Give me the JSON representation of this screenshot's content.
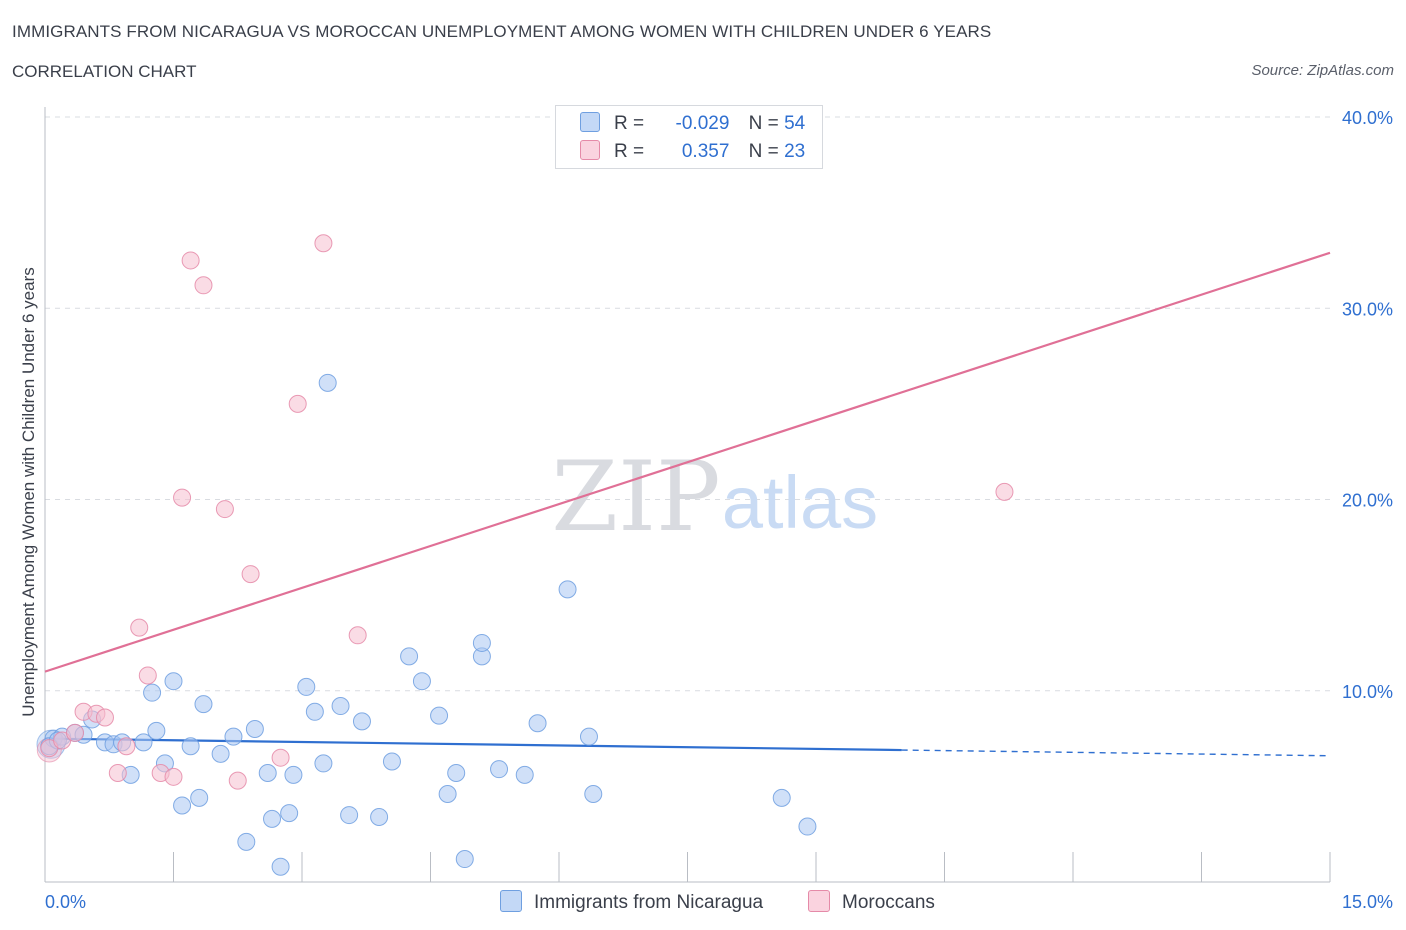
{
  "header": {
    "title": "IMMIGRANTS FROM NICARAGUA VS MOROCCAN UNEMPLOYMENT AMONG WOMEN WITH CHILDREN UNDER 6 YEARS",
    "subtitle": "CORRELATION CHART",
    "source": "Source: ZipAtlas.com"
  },
  "watermark": {
    "zip": "ZIP",
    "atlas": "atlas"
  },
  "legend": {
    "r_label": "R =",
    "n_label": "N =",
    "rows": [
      {
        "r": "-0.029",
        "n": "54",
        "color": "#a9c7f2"
      },
      {
        "r": "0.357",
        "n": "23",
        "color": "#f6bfd0"
      }
    ]
  },
  "colors": {
    "blue_fill": "#a9c7f2",
    "blue_stroke": "#6f9fe0",
    "blue_line": "#2f6fd0",
    "pink_fill": "#f6bfd0",
    "pink_stroke": "#e58aa8",
    "pink_line": "#e07096",
    "grid": "#d9dce1",
    "tick_text": "#2f6fd0"
  },
  "chart_data": {
    "type": "scatter",
    "title": "IMMIGRANTS FROM NICARAGUA VS MOROCCAN UNEMPLOYMENT AMONG WOMEN WITH CHILDREN UNDER 6 YEARS",
    "subtitle": "CORRELATION CHART",
    "xlabel": "",
    "ylabel": "Unemployment Among Women with Children Under 6 years",
    "xlim": [
      0,
      15
    ],
    "ylim": [
      0,
      40
    ],
    "x_tick_labels": [
      "0.0%",
      "15.0%"
    ],
    "y_ticks": [
      10,
      20,
      30,
      40
    ],
    "y_tick_labels": [
      "10.0%",
      "20.0%",
      "30.0%",
      "40.0%"
    ],
    "grid": true,
    "series": [
      {
        "name": "Immigrants from Nicaragua",
        "r": -0.029,
        "n": 54,
        "trend": {
          "x0": 0,
          "y0": 7.5,
          "x1": 10.0,
          "y1": 6.9,
          "dashed_to_x": 15,
          "dashed_to_y": 6.6
        },
        "points": [
          [
            0.1,
            7.5
          ],
          [
            0.2,
            7.6
          ],
          [
            0.35,
            7.8
          ],
          [
            0.45,
            7.7
          ],
          [
            0.55,
            8.5
          ],
          [
            0.7,
            7.3
          ],
          [
            0.8,
            7.2
          ],
          [
            0.9,
            7.3
          ],
          [
            1.0,
            5.6
          ],
          [
            1.15,
            7.3
          ],
          [
            1.25,
            9.9
          ],
          [
            1.3,
            7.9
          ],
          [
            1.4,
            6.2
          ],
          [
            1.5,
            10.5
          ],
          [
            1.6,
            4.0
          ],
          [
            1.7,
            7.1
          ],
          [
            1.8,
            4.4
          ],
          [
            1.85,
            9.3
          ],
          [
            2.05,
            6.7
          ],
          [
            2.2,
            7.6
          ],
          [
            2.35,
            2.1
          ],
          [
            2.45,
            8.0
          ],
          [
            2.6,
            5.7
          ],
          [
            2.65,
            3.3
          ],
          [
            2.75,
            0.8
          ],
          [
            2.85,
            3.6
          ],
          [
            2.9,
            5.6
          ],
          [
            3.05,
            10.2
          ],
          [
            3.15,
            8.9
          ],
          [
            3.25,
            6.2
          ],
          [
            3.3,
            26.1
          ],
          [
            3.45,
            9.2
          ],
          [
            3.55,
            3.5
          ],
          [
            3.7,
            8.4
          ],
          [
            3.9,
            3.4
          ],
          [
            4.05,
            6.3
          ],
          [
            4.25,
            11.8
          ],
          [
            4.4,
            10.5
          ],
          [
            4.6,
            8.7
          ],
          [
            4.7,
            4.6
          ],
          [
            4.8,
            5.7
          ],
          [
            4.9,
            1.2
          ],
          [
            5.1,
            11.8
          ],
          [
            5.1,
            12.5
          ],
          [
            5.3,
            5.9
          ],
          [
            5.6,
            5.6
          ],
          [
            5.75,
            8.3
          ],
          [
            6.1,
            15.3
          ],
          [
            6.35,
            7.6
          ],
          [
            6.4,
            4.6
          ],
          [
            8.6,
            4.4
          ],
          [
            8.9,
            2.9
          ],
          [
            0.05,
            7.1
          ],
          [
            0.15,
            7.4
          ]
        ]
      },
      {
        "name": "Moroccans",
        "r": 0.357,
        "n": 23,
        "trend": {
          "x0": 0,
          "y0": 11.0,
          "x1": 15,
          "y1": 32.9
        },
        "points": [
          [
            0.05,
            7.0
          ],
          [
            0.2,
            7.4
          ],
          [
            0.35,
            7.8
          ],
          [
            0.45,
            8.9
          ],
          [
            0.6,
            8.8
          ],
          [
            0.7,
            8.6
          ],
          [
            0.85,
            5.7
          ],
          [
            0.95,
            7.1
          ],
          [
            1.1,
            13.3
          ],
          [
            1.2,
            10.8
          ],
          [
            1.35,
            5.7
          ],
          [
            1.5,
            5.5
          ],
          [
            1.6,
            20.1
          ],
          [
            1.7,
            32.5
          ],
          [
            1.85,
            31.2
          ],
          [
            2.1,
            19.5
          ],
          [
            2.25,
            5.3
          ],
          [
            2.4,
            16.1
          ],
          [
            2.75,
            6.5
          ],
          [
            2.95,
            25.0
          ],
          [
            3.25,
            33.4
          ],
          [
            3.65,
            12.9
          ],
          [
            11.2,
            20.4
          ]
        ]
      }
    ]
  }
}
